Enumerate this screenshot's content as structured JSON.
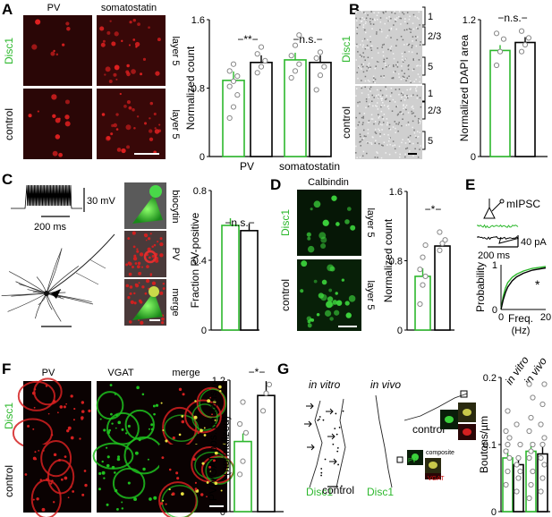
{
  "colors": {
    "disc1": "#2db82d",
    "control": "#000000",
    "micro_red": "#c81818",
    "micro_green": "#1faa1f",
    "micro_bg_dark": "#1a0505"
  },
  "panels": {
    "A": {
      "letter": "A",
      "col1": "PV",
      "col2": "somatostatin",
      "row1": "Disc1",
      "row2": "control",
      "side1": "layer 5",
      "side2": "layer 5",
      "signif": [
        "−**−",
        "−n.s.−"
      ],
      "chart_data": {
        "type": "bar",
        "categories": [
          "PV",
          "somatostatin"
        ],
        "series": [
          {
            "name": "Disc1",
            "values": [
              0.89,
              1.13
            ]
          },
          {
            "name": "control",
            "values": [
              1.1,
              1.1
            ]
          }
        ],
        "ylabel": "Normalized count",
        "yticks": [
          "0",
          "0.8",
          "1.6"
        ],
        "ylim": [
          0,
          1.6
        ],
        "points": {
          "pv_disc1": [
            0.45,
            0.58,
            0.72,
            0.82,
            0.88,
            0.94,
            1.0,
            1.08
          ],
          "pv_control": [
            0.98,
            1.05,
            1.12,
            1.2,
            1.28
          ],
          "sst_disc1": [
            0.92,
            1.0,
            1.08,
            1.18,
            1.3,
            1.42
          ],
          "sst_control": [
            0.78,
            0.95,
            1.05,
            1.15,
            1.22
          ]
        }
      }
    },
    "B": {
      "letter": "B",
      "row1": "Disc1",
      "row2": "control",
      "layers1": [
        "1",
        "2/3",
        "5"
      ],
      "layers2": [
        "1",
        "2/3",
        "5"
      ],
      "signif": "−n.s.−",
      "chart_data": {
        "type": "bar",
        "categories": [
          "Disc1",
          "control"
        ],
        "values": [
          0.93,
          1.0
        ],
        "ylabel": "Normalized DAPI area",
        "yticks": [
          "0",
          "1.2"
        ],
        "ylim": [
          0,
          1.2
        ],
        "points": {
          "disc1": [
            0.8,
            0.92,
            1.03,
            1.08
          ],
          "control": [
            0.92,
            0.98,
            1.04,
            1.1
          ]
        }
      }
    },
    "C": {
      "letter": "C",
      "scale_mv": "30 mV",
      "scale_ms": "200 ms",
      "stains": [
        "biocytin",
        "PV",
        "merge"
      ],
      "signif": "−n.s.−",
      "chart_data": {
        "type": "bar",
        "categories": [
          "Disc1",
          "control"
        ],
        "values": [
          0.6,
          0.57
        ],
        "ylabel": "Fraction PV-positive",
        "yticks": [
          "0",
          "0.4",
          "0.8"
        ],
        "ylim": [
          0,
          0.8
        ]
      }
    },
    "D": {
      "letter": "D",
      "title": "Calbindin",
      "row1": "Disc1",
      "row2": "control",
      "side1": "layer 5",
      "side2": "layer 5",
      "signif": "−*−",
      "chart_data": {
        "type": "bar",
        "categories": [
          "Disc1",
          "control"
        ],
        "values": [
          0.62,
          0.97
        ],
        "ylabel": "Normalized count",
        "yticks": [
          "0",
          "0.8",
          "1.6"
        ],
        "ylim": [
          0,
          1.6
        ],
        "points": {
          "disc1": [
            0.3,
            0.52,
            0.62,
            0.7,
            0.84,
            0.98
          ],
          "control": [
            0.92,
            1.0,
            1.04,
            1.13
          ]
        }
      }
    },
    "E": {
      "letter": "E",
      "title": "mIPSC",
      "scale_pa": "40 pA",
      "scale_ms": "200 ms",
      "signif": "*",
      "chart_data": {
        "type": "line",
        "xlabel": "Freq.",
        "xunit": "(Hz)",
        "ylabel": "Probability",
        "xticks": [
          "0",
          "20"
        ],
        "yticks": [
          "0",
          "1"
        ],
        "xlim": [
          0,
          20
        ],
        "ylim": [
          0,
          1
        ],
        "series": [
          {
            "name": "Disc1",
            "x": [
              0,
              1,
              2,
              3,
              5,
              7,
              10,
              14,
              20
            ],
            "y": [
              0,
              0.3,
              0.48,
              0.6,
              0.72,
              0.79,
              0.86,
              0.92,
              0.96
            ]
          },
          {
            "name": "control",
            "x": [
              0,
              1,
              2,
              3,
              5,
              7,
              10,
              14,
              20
            ],
            "y": [
              0,
              0.22,
              0.38,
              0.5,
              0.64,
              0.73,
              0.81,
              0.88,
              0.93
            ]
          }
        ]
      }
    },
    "F": {
      "letter": "F",
      "cols": [
        "PV",
        "VGAT",
        "merge"
      ],
      "row1": "Disc1",
      "row2": "control",
      "signif": "−*−",
      "chart_data": {
        "type": "bar",
        "categories": [
          "Disc1",
          "control"
        ],
        "values": [
          0.64,
          1.06
        ],
        "ylabel": "PV/VGAT-pos. boutons",
        "ylabel2": "(normalized)",
        "yticks": [
          "0",
          "1.2"
        ],
        "ylim": [
          0,
          1.2
        ],
        "points": {
          "disc1": [
            0.34,
            0.46,
            0.72,
            0.8,
            1.0
          ],
          "control": [
            0.92,
            1.08,
            1.16
          ]
        }
      }
    },
    "G": {
      "letter": "G",
      "invitro": "in vitro",
      "invivo": "in vivo",
      "control_top": "control",
      "disc1_a": "Disc1",
      "control_b": "control",
      "disc1_b": "Disc1",
      "composite": "composite",
      "pv": "PV",
      "vgat": "VGAT",
      "col_invitro": "in vitro",
      "col_invivo": "in vivo",
      "chart_data": {
        "type": "bar",
        "categories": [
          "in vitro Disc1",
          "in vitro control",
          "in vivo Disc1",
          "in vivo control"
        ],
        "values": [
          0.08,
          0.07,
          0.09,
          0.086
        ],
        "ylabel": "Boutons/µm",
        "yticks": [
          "0",
          "0.1",
          "0.2"
        ],
        "ylim": [
          0,
          0.2
        ],
        "points": {
          "a": [
            0.04,
            0.06,
            0.08,
            0.09,
            0.1,
            0.11,
            0.12,
            0.15
          ],
          "b": [
            0.03,
            0.05,
            0.06,
            0.07,
            0.08,
            0.1,
            0.13
          ],
          "c": [
            0.02,
            0.04,
            0.06,
            0.08,
            0.09,
            0.1,
            0.12,
            0.14,
            0.17,
            0.19
          ],
          "d": [
            0.03,
            0.05,
            0.07,
            0.08,
            0.1,
            0.11,
            0.13,
            0.16,
            0.19
          ]
        }
      }
    }
  }
}
